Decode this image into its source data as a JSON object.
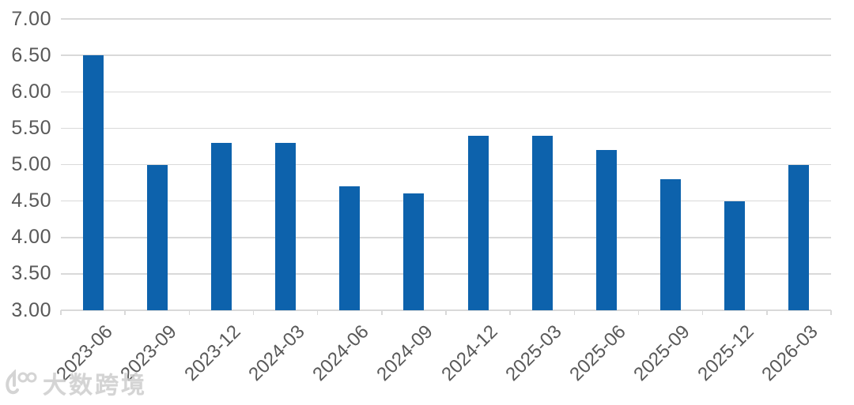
{
  "chart_data": {
    "type": "bar",
    "title": "",
    "xlabel": "",
    "ylabel": "",
    "categories": [
      "2023-06",
      "2023-09",
      "2023-12",
      "2024-03",
      "2024-06",
      "2024-09",
      "2024-12",
      "2025-03",
      "2025-06",
      "2025-09",
      "2025-12",
      "2026-03"
    ],
    "values": [
      6.5,
      5.0,
      5.3,
      5.3,
      4.7,
      4.6,
      5.4,
      5.4,
      5.2,
      4.8,
      4.5,
      5.0
    ],
    "ylim": [
      3.0,
      7.0
    ],
    "ytick_step": 0.5,
    "ytick_labels": [
      "7.00",
      "6.50",
      "6.00",
      "5.50",
      "5.00",
      "4.50",
      "4.00",
      "3.50",
      "3.00"
    ],
    "grid": "horizontal",
    "legend_position": "none",
    "colors": {
      "bar": "#0D62AC",
      "gridline": "#D9D9D9",
      "axis_line": "#D9D9D9",
      "axis_label": "#595959",
      "background": "#FFFFFF",
      "watermark": "#CDCDCD"
    }
  },
  "watermark": {
    "icon": "dashu-100-logo-icon",
    "text": "大数跨境"
  }
}
